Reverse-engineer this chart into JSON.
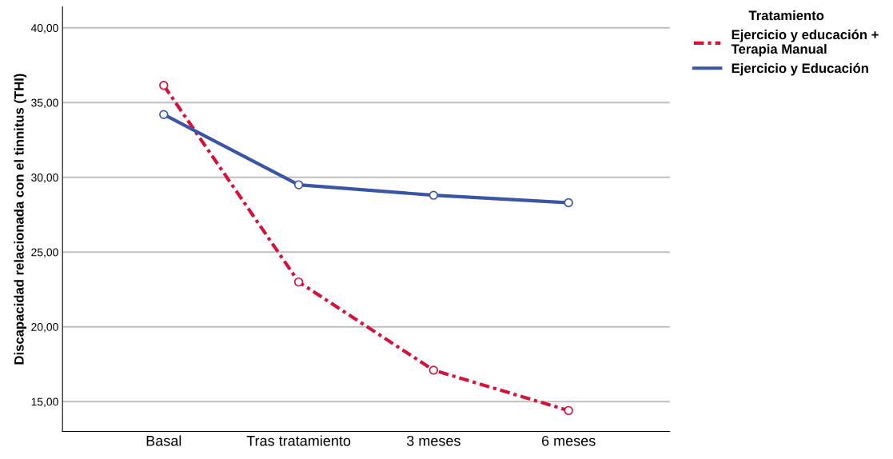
{
  "chart_data": {
    "type": "line",
    "ylabel": "Discapacidad relacionada con el tinnitus (THI)",
    "legend_title": "Tratamiento",
    "categories": [
      "Basal",
      "Tras tratamiento",
      "3 meses",
      "6 meses"
    ],
    "series": [
      {
        "name": "Ejercicio y educación +\nTerapia Manual",
        "color": "#d6123a",
        "line_style": "dashed",
        "values": [
          36.15,
          23.0,
          17.1,
          14.4
        ]
      },
      {
        "name": "Ejercicio y Educación",
        "color": "#3a55a4",
        "line_style": "solid",
        "values": [
          34.2,
          29.5,
          28.8,
          28.3
        ]
      }
    ],
    "ylim": [
      13,
      41.4
    ],
    "yticks": [
      {
        "value": 15,
        "label": "15,00"
      },
      {
        "value": 20,
        "label": "20,00"
      },
      {
        "value": 25,
        "label": "25,00"
      },
      {
        "value": 30,
        "label": "30,00"
      },
      {
        "value": 35,
        "label": "35,00"
      },
      {
        "value": 40,
        "label": "40,00"
      }
    ],
    "grid": "y",
    "legend": "top right",
    "marker": "circle"
  }
}
